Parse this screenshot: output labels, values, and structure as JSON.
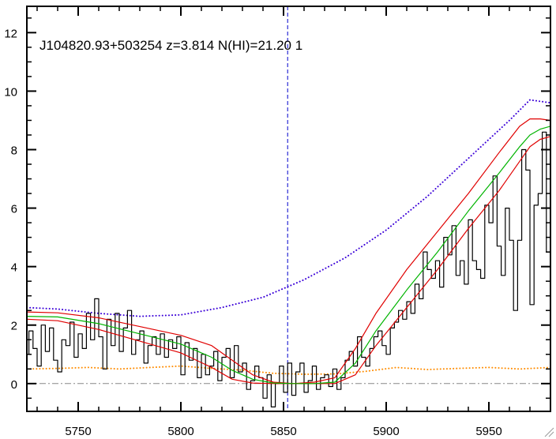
{
  "chart_data": {
    "type": "line",
    "title": "J104820.93+503254 z=3.814 N(HI)=21.20 1",
    "xlabel": "",
    "ylabel": "",
    "xlim": [
      5725,
      5980
    ],
    "ylim": [
      -0.95,
      12.9
    ],
    "x_ticks": [
      5750,
      5800,
      5850,
      5900,
      5950
    ],
    "y_ticks": [
      0,
      2,
      4,
      6,
      8,
      10,
      12
    ],
    "grid": false,
    "legend": "none",
    "colors": {
      "flux": "#000000",
      "error": "#ff8c00",
      "continuum": "#3a00d8",
      "model": "#00b400",
      "model_bounds": "#e00000",
      "line_center": "#0000cc",
      "zero_line": "#888888"
    },
    "line_center_x": 5852,
    "series": [
      {
        "style": "steps",
        "x": [
          5725,
          5727,
          5729,
          5731,
          5733,
          5735,
          5737,
          5739,
          5741,
          5743,
          5745,
          5747,
          5749,
          5751,
          5753,
          5755,
          5757,
          5759,
          5761,
          5763,
          5765,
          5767,
          5769,
          5771,
          5773,
          5775,
          5777,
          5779,
          5781,
          5783,
          5785,
          5787,
          5789,
          5791,
          5793,
          5795,
          5797,
          5799,
          5801,
          5803,
          5805,
          5807,
          5809,
          5811,
          5813,
          5815,
          5817,
          5819,
          5821,
          5823,
          5825,
          5827,
          5829,
          5831,
          5833,
          5835,
          5837,
          5839,
          5841,
          5843,
          5845,
          5847,
          5849,
          5851,
          5853,
          5855,
          5857,
          5859,
          5861,
          5863,
          5865,
          5867,
          5869,
          5871,
          5873,
          5875,
          5877,
          5879,
          5881,
          5883,
          5885,
          5887,
          5889,
          5891,
          5893,
          5895,
          5897,
          5899,
          5901,
          5903,
          5905,
          5907,
          5909,
          5911,
          5913,
          5915,
          5917,
          5919,
          5921,
          5923,
          5925,
          5927,
          5929,
          5931,
          5933,
          5935,
          5937,
          5939,
          5941,
          5943,
          5945,
          5947,
          5949,
          5951,
          5953,
          5955,
          5957,
          5959,
          5961,
          5963,
          5965,
          5967,
          5969,
          5971,
          5973,
          5975,
          5977,
          5979
        ],
        "y": [
          1.0,
          1.8,
          1.2,
          0.6,
          2.0,
          1.1,
          1.9,
          0.8,
          0.4,
          1.5,
          1.3,
          2.1,
          0.9,
          1.7,
          1.2,
          2.4,
          1.5,
          2.9,
          1.6,
          0.5,
          2.2,
          1.3,
          2.4,
          1.1,
          1.9,
          2.5,
          1.0,
          1.5,
          1.8,
          0.7,
          1.3,
          1.6,
          1.0,
          1.7,
          0.9,
          1.5,
          1.2,
          1.6,
          0.3,
          1.4,
          0.8,
          1.2,
          0.2,
          1.0,
          0.3,
          0.6,
          1.1,
          0.1,
          0.9,
          1.2,
          0.2,
          1.3,
          0.4,
          0.7,
          -0.2,
          0.1,
          0.6,
          0.2,
          -0.5,
          0.3,
          -0.8,
          0.0,
          0.6,
          -0.3,
          0.7,
          -0.4,
          0.4,
          0.7,
          -0.3,
          0.1,
          0.6,
          -0.2,
          0.2,
          0.3,
          -0.1,
          0.5,
          -0.2,
          0.2,
          0.8,
          1.1,
          0.6,
          1.6,
          0.9,
          0.6,
          1.2,
          1.6,
          1.8,
          1.3,
          1.0,
          1.9,
          2.1,
          2.5,
          2.2,
          2.8,
          2.4,
          3.4,
          2.9,
          4.5,
          3.9,
          3.6,
          4.2,
          3.3,
          5.0,
          4.4,
          5.4,
          3.7,
          4.2,
          3.4,
          5.6,
          4.2,
          3.9,
          3.6,
          6.1,
          5.5,
          7.1,
          4.7,
          3.7,
          6.0,
          4.9,
          2.5,
          4.9,
          8.0,
          7.3,
          2.7,
          6.1,
          6.5,
          8.6,
          4.5
        ],
        "color": "#000000"
      },
      {
        "style": "dotted",
        "x": [
          5725,
          5740,
          5755,
          5770,
          5785,
          5800,
          5815,
          5830,
          5845,
          5860,
          5875,
          5890,
          5905,
          5920,
          5935,
          5950,
          5965,
          5980
        ],
        "y": [
          0.5,
          0.52,
          0.55,
          0.5,
          0.55,
          0.6,
          0.52,
          0.46,
          0.35,
          0.32,
          0.33,
          0.42,
          0.55,
          0.48,
          0.52,
          0.55,
          0.5,
          0.55
        ],
        "color": "#ff8c00"
      },
      {
        "style": "dotted",
        "x": [
          5725,
          5740,
          5760,
          5780,
          5800,
          5820,
          5840,
          5860,
          5880,
          5900,
          5920,
          5940,
          5960,
          5970,
          5980
        ],
        "y": [
          2.6,
          2.55,
          2.4,
          2.3,
          2.35,
          2.6,
          2.95,
          3.55,
          4.3,
          5.25,
          6.4,
          7.7,
          9.0,
          9.7,
          9.6
        ],
        "color": "#3a00d8"
      },
      {
        "style": "solid",
        "x": [
          5725,
          5740,
          5760,
          5780,
          5800,
          5815,
          5825,
          5835,
          5845,
          5855,
          5865,
          5875,
          5885,
          5895,
          5910,
          5925,
          5940,
          5955,
          5965,
          5970,
          5975,
          5980
        ],
        "y": [
          2.3,
          2.28,
          2.05,
          1.7,
          1.35,
          0.9,
          0.45,
          0.15,
          0.02,
          0.0,
          0.0,
          0.05,
          0.7,
          1.8,
          3.2,
          4.5,
          5.9,
          7.2,
          8.1,
          8.5,
          8.7,
          8.8
        ],
        "color": "#00b400"
      },
      {
        "style": "solid",
        "x": [
          5725,
          5740,
          5760,
          5780,
          5800,
          5815,
          5825,
          5835,
          5845,
          5855,
          5865,
          5875,
          5885,
          5895,
          5910,
          5925,
          5940,
          5955,
          5965,
          5970,
          5975,
          5980
        ],
        "y": [
          2.45,
          2.42,
          2.25,
          1.95,
          1.65,
          1.3,
          0.8,
          0.3,
          0.05,
          0.0,
          0.05,
          0.2,
          1.2,
          2.4,
          3.9,
          5.2,
          6.5,
          7.9,
          8.8,
          9.05,
          9.05,
          9.0
        ],
        "color": "#e00000"
      },
      {
        "style": "solid",
        "x": [
          5725,
          5740,
          5760,
          5780,
          5800,
          5815,
          5825,
          5835,
          5845,
          5855,
          5865,
          5875,
          5885,
          5895,
          5910,
          5925,
          5940,
          5955,
          5965,
          5970,
          5975,
          5980
        ],
        "y": [
          2.2,
          2.15,
          1.85,
          1.45,
          1.05,
          0.55,
          0.15,
          0.02,
          0.0,
          0.0,
          0.0,
          0.0,
          0.3,
          1.3,
          2.6,
          3.9,
          5.3,
          6.6,
          7.6,
          8.1,
          8.35,
          8.45
        ],
        "color": "#e00000"
      }
    ]
  }
}
